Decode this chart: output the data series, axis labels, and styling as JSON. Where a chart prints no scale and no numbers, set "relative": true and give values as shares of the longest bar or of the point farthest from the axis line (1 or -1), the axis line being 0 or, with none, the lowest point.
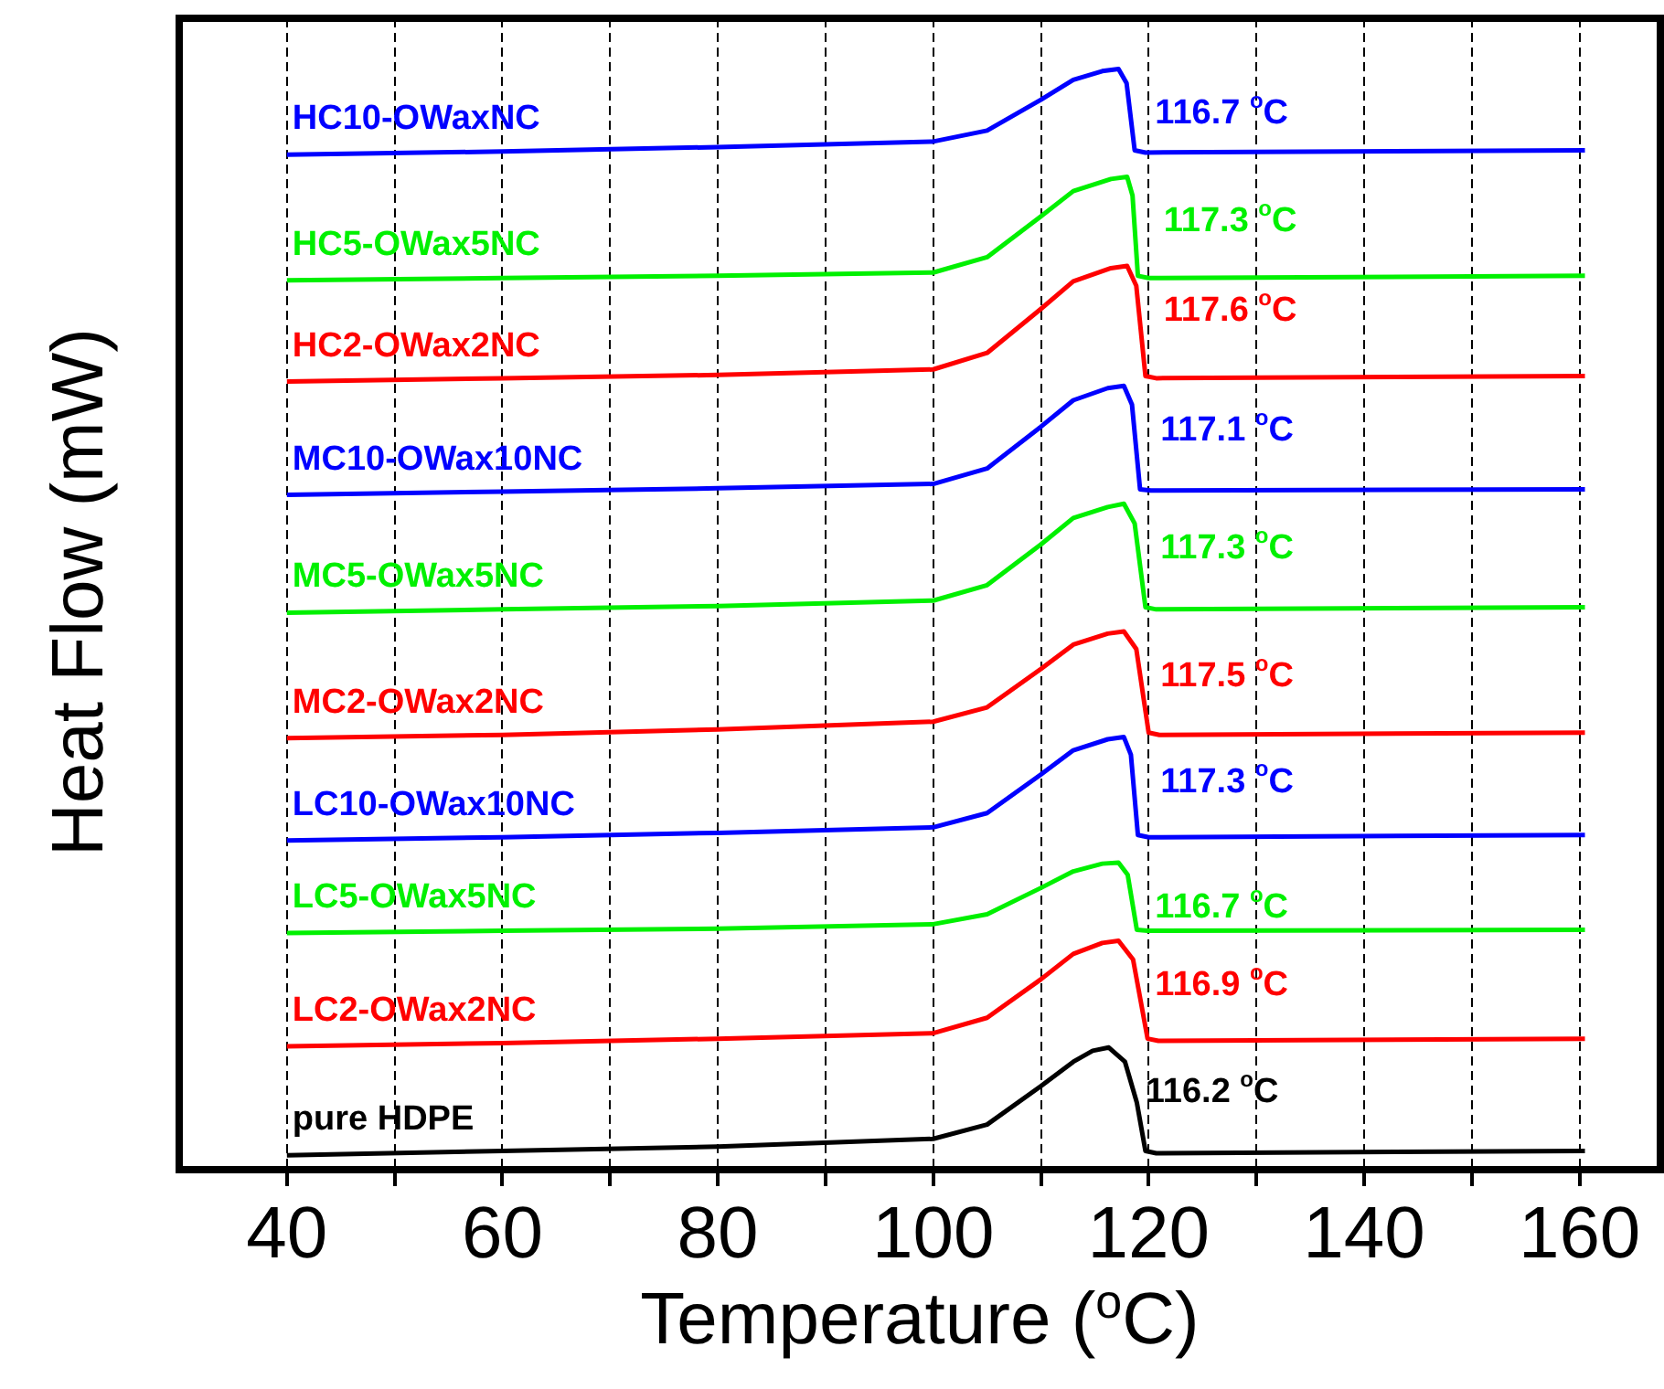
{
  "chart_data": {
    "type": "line",
    "relative": true,
    "xlabel": "Temperature ($^{o}$C)",
    "ylabel": "Heat Flow (mW)",
    "xlim": [
      30,
      167.5
    ],
    "xticks": [
      40,
      {
        "value": 50,
        "label": null
      },
      60,
      {
        "value": 70,
        "label": null
      },
      80,
      {
        "value": 90,
        "label": null
      },
      100,
      {
        "value": 110,
        "label": null
      },
      120,
      {
        "value": 130,
        "label": null
      },
      140,
      {
        "value": 150,
        "label": null
      },
      160
    ],
    "grid": "x",
    "legend": false,
    "marker": "none",
    "series": [
      {
        "name": "HC10-OWaxNC",
        "color": "#0000ff",
        "x": [
          40,
          60,
          80,
          100,
          105,
          110,
          113,
          115.7,
          117.2,
          117.95,
          118.7,
          119.7,
          160.5
        ],
        "values": [
          0.922,
          0.925,
          0.929,
          0.934,
          0.944,
          0.972,
          0.99,
          0.998,
          1.0,
          0.987,
          0.926,
          0.924,
          0.926
        ]
      },
      {
        "name": "HC5-OWax5NC",
        "color": "#00f000",
        "x": [
          40,
          60,
          80,
          100,
          105,
          110,
          113,
          116.5,
          118.0,
          118.5,
          119.0,
          120.0,
          160.5
        ],
        "values": [
          0.808,
          0.81,
          0.812,
          0.815,
          0.829,
          0.866,
          0.889,
          0.9,
          0.902,
          0.885,
          0.812,
          0.81,
          0.812
        ]
      },
      {
        "name": "HC2-OWax2NC",
        "color": "#ff0000",
        "x": [
          40,
          60,
          80,
          100,
          105,
          110,
          113,
          116.5,
          118.0,
          118.85,
          119.7,
          120.7,
          160.5
        ],
        "values": [
          0.716,
          0.719,
          0.722,
          0.727,
          0.742,
          0.782,
          0.807,
          0.819,
          0.821,
          0.803,
          0.721,
          0.719,
          0.721
        ]
      },
      {
        "name": "MC10-OWax10NC",
        "color": "#0000ff",
        "x": [
          40,
          60,
          80,
          100,
          105,
          110,
          113,
          116.2,
          117.7,
          118.45,
          119.2,
          120.2,
          160.5
        ],
        "values": [
          0.613,
          0.616,
          0.619,
          0.623,
          0.637,
          0.675,
          0.699,
          0.71,
          0.712,
          0.695,
          0.618,
          0.617,
          0.618
        ]
      },
      {
        "name": "MC5-OWax5NC",
        "color": "#00f000",
        "x": [
          40,
          60,
          80,
          100,
          105,
          110,
          113,
          116.2,
          117.7,
          118.7,
          119.7,
          120.7,
          160.5
        ],
        "values": [
          0.506,
          0.509,
          0.512,
          0.517,
          0.531,
          0.568,
          0.592,
          0.602,
          0.605,
          0.587,
          0.511,
          0.509,
          0.511
        ]
      },
      {
        "name": "MC2-OWax2NC",
        "color": "#ff0000",
        "x": [
          40,
          60,
          80,
          100,
          105,
          110,
          113,
          116.2,
          117.7,
          118.85,
          120.0,
          121.0,
          160.5
        ],
        "values": [
          0.392,
          0.395,
          0.4,
          0.407,
          0.42,
          0.455,
          0.477,
          0.487,
          0.489,
          0.473,
          0.397,
          0.395,
          0.397
        ]
      },
      {
        "name": "LC10-OWax10NC",
        "color": "#0000ff",
        "x": [
          40,
          60,
          80,
          100,
          105,
          110,
          113,
          116.2,
          117.7,
          118.35,
          119.0,
          120.0,
          160.5
        ],
        "values": [
          0.299,
          0.302,
          0.306,
          0.311,
          0.324,
          0.359,
          0.381,
          0.391,
          0.393,
          0.377,
          0.304,
          0.302,
          0.304
        ]
      },
      {
        "name": "LC5-OWax5NC",
        "color": "#00f000",
        "x": [
          40,
          60,
          80,
          100,
          105,
          110,
          113,
          115.7,
          117.2,
          118.05,
          118.9,
          119.9,
          160.5
        ],
        "values": [
          0.215,
          0.217,
          0.219,
          0.223,
          0.232,
          0.256,
          0.271,
          0.278,
          0.279,
          0.268,
          0.218,
          0.217,
          0.218
        ]
      },
      {
        "name": "LC2-OWax2NC",
        "color": "#ff0000",
        "x": [
          40,
          60,
          80,
          100,
          105,
          110,
          113,
          115.7,
          117.2,
          118.55,
          119.9,
          120.9,
          160.5
        ],
        "values": [
          0.112,
          0.115,
          0.119,
          0.124,
          0.138,
          0.173,
          0.196,
          0.206,
          0.208,
          0.191,
          0.119,
          0.117,
          0.119
        ]
      },
      {
        "name": "pure HDPE",
        "color": "#000000",
        "x": [
          40,
          60,
          80,
          100,
          105,
          110,
          113,
          114.8,
          116.3,
          117.8,
          118.9,
          119.7,
          120.7,
          160.5
        ],
        "values": [
          0.013,
          0.017,
          0.021,
          0.028,
          0.041,
          0.076,
          0.098,
          0.108,
          0.111,
          0.098,
          0.061,
          0.017,
          0.015,
          0.017
        ]
      }
    ],
    "annotations": [
      {
        "text": "116.7 $^{o}$C",
        "x": 117.2,
        "y": 1.0
      },
      {
        "text": "117.3 $^{o}$C",
        "x": 118.0,
        "y": 0.902
      },
      {
        "text": "117.6 $^{o}$C",
        "x": 118.0,
        "y": 0.821
      },
      {
        "text": "117.1 $^{o}$C",
        "x": 117.7,
        "y": 0.712
      },
      {
        "text": "117.3 $^{o}$C",
        "x": 117.7,
        "y": 0.605
      },
      {
        "text": "117.5 $^{o}$C",
        "x": 117.7,
        "y": 0.489
      },
      {
        "text": "117.3 $^{o}$C",
        "x": 117.7,
        "y": 0.393
      },
      {
        "text": "116.7 $^{o}$C",
        "x": 117.2,
        "y": 0.279
      },
      {
        "text": "116.9 $^{o}$C",
        "x": 117.2,
        "y": 0.208
      },
      {
        "text": "116.2 $^{o}$C",
        "x": 116.3,
        "y": 0.111
      }
    ]
  }
}
